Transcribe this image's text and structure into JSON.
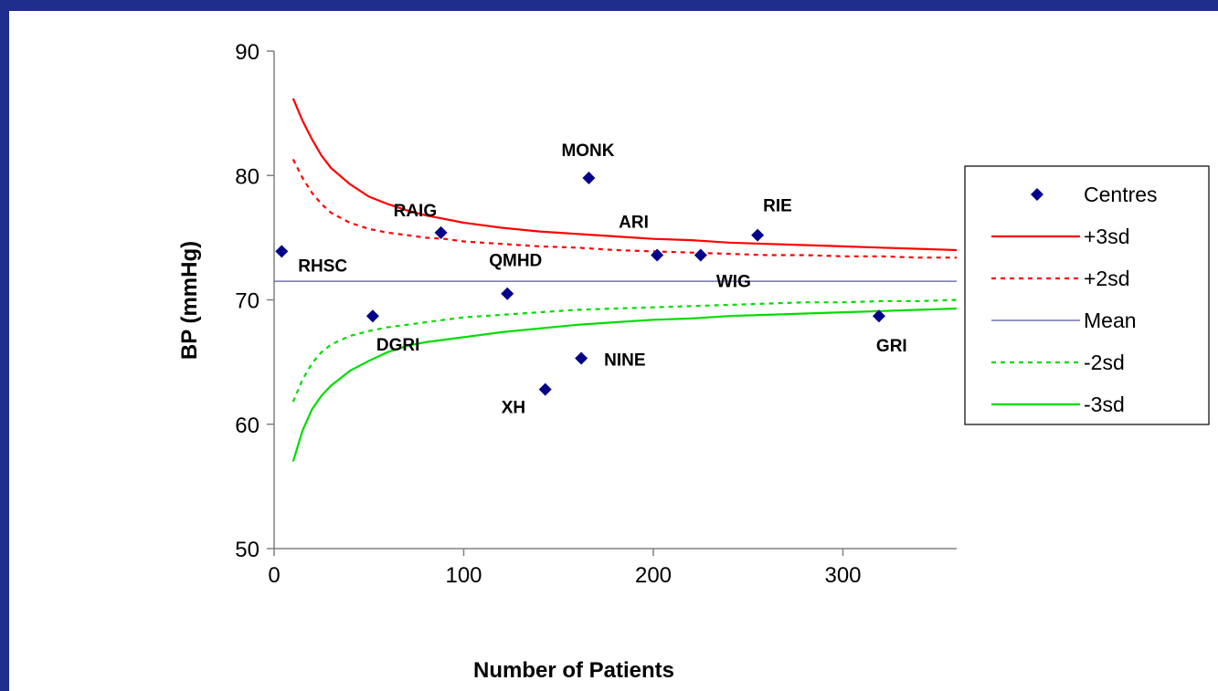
{
  "chart_data": {
    "type": "scatter",
    "title": "",
    "xlabel": "Number of Patients",
    "ylabel": "BP (mmHg)",
    "xlim": [
      0,
      360
    ],
    "ylim": [
      50,
      90
    ],
    "x_ticks": [
      0,
      100,
      200,
      300
    ],
    "y_ticks": [
      50,
      60,
      70,
      80,
      90
    ],
    "grid": false,
    "legend_position": "right",
    "mean": 71.5,
    "points": [
      {
        "label": "RHSC",
        "x": 4,
        "y": 73.9
      },
      {
        "label": "DGRI",
        "x": 52,
        "y": 68.7
      },
      {
        "label": "RAIG",
        "x": 88,
        "y": 75.4
      },
      {
        "label": "QMHD",
        "x": 123,
        "y": 70.5
      },
      {
        "label": "XH",
        "x": 143,
        "y": 62.8
      },
      {
        "label": "NINE",
        "x": 162,
        "y": 65.3
      },
      {
        "label": "MONK",
        "x": 166,
        "y": 79.8
      },
      {
        "label": "ARI",
        "x": 202,
        "y": 73.6
      },
      {
        "label": "WIG",
        "x": 225,
        "y": 73.6
      },
      {
        "label": "RIE",
        "x": 255,
        "y": 75.2
      },
      {
        "label": "GRI",
        "x": 319,
        "y": 68.7
      }
    ],
    "series": [
      {
        "name": "Centres",
        "kind": "points",
        "color": "#00008b"
      },
      {
        "name": "+3sd",
        "kind": "line",
        "style": "solid",
        "color": "#ff0000",
        "x": [
          10,
          15,
          20,
          25,
          30,
          40,
          50,
          60,
          70,
          80,
          90,
          100,
          120,
          140,
          160,
          180,
          200,
          220,
          240,
          260,
          280,
          300,
          320,
          340,
          360
        ],
        "y": [
          86.2,
          84.4,
          82.9,
          81.6,
          80.6,
          79.3,
          78.3,
          77.7,
          77.2,
          76.8,
          76.5,
          76.2,
          75.8,
          75.5,
          75.3,
          75.1,
          74.9,
          74.8,
          74.6,
          74.5,
          74.4,
          74.3,
          74.2,
          74.1,
          74.0
        ]
      },
      {
        "name": "+2sd",
        "kind": "line",
        "style": "dotted",
        "color": "#ff0000",
        "x": [
          10,
          15,
          20,
          25,
          30,
          40,
          50,
          60,
          70,
          80,
          90,
          100,
          120,
          140,
          160,
          180,
          200,
          220,
          240,
          260,
          280,
          300,
          320,
          340,
          360
        ],
        "y": [
          81.3,
          79.8,
          78.6,
          77.7,
          77.0,
          76.2,
          75.7,
          75.4,
          75.2,
          75.0,
          74.9,
          74.7,
          74.5,
          74.3,
          74.2,
          74.0,
          73.9,
          73.8,
          73.7,
          73.6,
          73.6,
          73.5,
          73.5,
          73.4,
          73.4
        ]
      },
      {
        "name": "Mean",
        "kind": "line",
        "style": "solid",
        "color": "#5555aa",
        "x": [
          0,
          360
        ],
        "y": [
          71.5,
          71.5
        ]
      },
      {
        "name": "-2sd",
        "kind": "line",
        "style": "dotted",
        "color": "#00dd00",
        "x": [
          10,
          15,
          20,
          25,
          30,
          40,
          50,
          60,
          70,
          80,
          90,
          100,
          120,
          140,
          160,
          180,
          200,
          220,
          240,
          260,
          280,
          300,
          320,
          340,
          360
        ],
        "y": [
          61.8,
          63.6,
          64.9,
          65.8,
          66.4,
          67.1,
          67.5,
          67.8,
          68.0,
          68.2,
          68.4,
          68.6,
          68.8,
          69.0,
          69.2,
          69.3,
          69.4,
          69.5,
          69.6,
          69.7,
          69.8,
          69.8,
          69.9,
          69.9,
          70.0
        ]
      },
      {
        "name": "-3sd",
        "kind": "line",
        "style": "solid",
        "color": "#00dd00",
        "x": [
          10,
          15,
          20,
          25,
          30,
          40,
          50,
          60,
          70,
          80,
          90,
          100,
          120,
          140,
          160,
          180,
          200,
          220,
          240,
          260,
          280,
          300,
          320,
          340,
          360
        ],
        "y": [
          57.0,
          59.5,
          61.2,
          62.3,
          63.1,
          64.3,
          65.1,
          65.8,
          66.3,
          66.6,
          66.8,
          67.0,
          67.4,
          67.7,
          68.0,
          68.2,
          68.4,
          68.5,
          68.7,
          68.8,
          68.9,
          69.0,
          69.1,
          69.2,
          69.3
        ]
      }
    ]
  }
}
